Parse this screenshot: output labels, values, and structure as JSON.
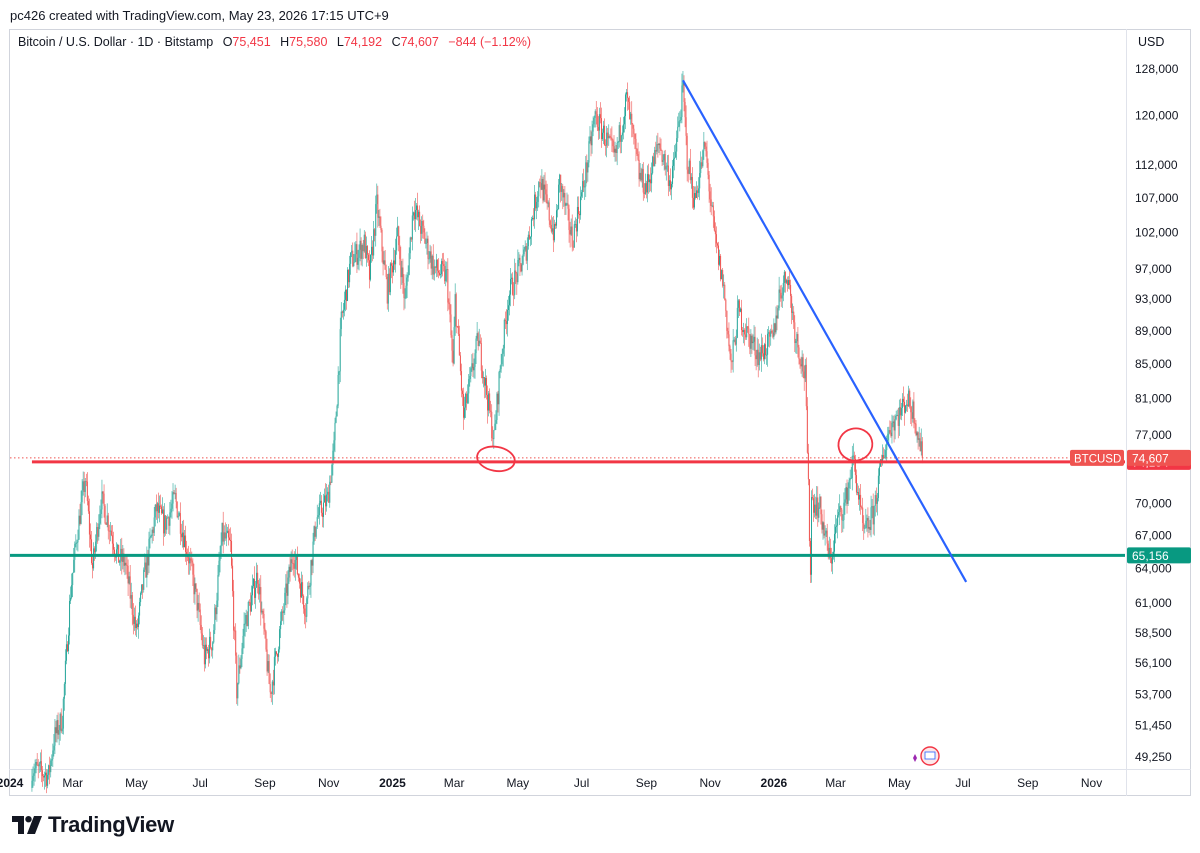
{
  "header": {
    "credit": "pc426 created with TradingView.com, May 23, 2026 17:15 UTC+9"
  },
  "legend": {
    "symbol": "Bitcoin / U.S. Dollar · 1D · Bitstamp",
    "open_label": "O",
    "open_value": "75,451",
    "high_label": "H",
    "high_value": "75,580",
    "low_label": "L",
    "low_value": "74,192",
    "close_label": "C",
    "close_value": "74,607",
    "change": "−844 (−1.12%)"
  },
  "axis": {
    "currency": "USD"
  },
  "footer": {
    "brand": "TradingView"
  },
  "colors": {
    "up": "#26a69a",
    "down": "#ef5350",
    "trendline": "#2962ff",
    "resistance": "#f23645",
    "support": "#089981",
    "annotation": "#f23645"
  },
  "chart_data": {
    "type": "candlestick",
    "scale": "log",
    "interval": "1D",
    "y_ticks": [
      128000,
      120000,
      112000,
      107000,
      102000,
      97000,
      93000,
      89000,
      85000,
      81000,
      77000,
      70000,
      67000,
      64000,
      61000,
      58500,
      56100,
      53700,
      51450,
      49250
    ],
    "y_tick_labels": [
      "128,000",
      "120,000",
      "112,000",
      "107,000",
      "102,000",
      "97,000",
      "93,000",
      "89,000",
      "85,000",
      "81,000",
      "77,000",
      "70,000",
      "67,000",
      "64,000",
      "61,000",
      "58,500",
      "56,100",
      "53,700",
      "51,450",
      "49,250"
    ],
    "x_ticks": [
      {
        "date": "2024-01-01",
        "label": "2024",
        "bold": true
      },
      {
        "date": "2024-03-01",
        "label": "Mar"
      },
      {
        "date": "2024-05-01",
        "label": "May"
      },
      {
        "date": "2024-07-01",
        "label": "Jul"
      },
      {
        "date": "2024-09-01",
        "label": "Sep"
      },
      {
        "date": "2024-11-01",
        "label": "Nov"
      },
      {
        "date": "2025-01-01",
        "label": "2025",
        "bold": true
      },
      {
        "date": "2025-03-01",
        "label": "Mar"
      },
      {
        "date": "2025-05-01",
        "label": "May"
      },
      {
        "date": "2025-07-01",
        "label": "Jul"
      },
      {
        "date": "2025-09-01",
        "label": "Sep"
      },
      {
        "date": "2025-11-01",
        "label": "Nov"
      },
      {
        "date": "2026-01-01",
        "label": "2026",
        "bold": true
      },
      {
        "date": "2026-03-01",
        "label": "Mar"
      },
      {
        "date": "2026-05-01",
        "label": "May"
      },
      {
        "date": "2026-07-01",
        "label": "Jul"
      },
      {
        "date": "2026-09-01",
        "label": "Sep"
      },
      {
        "date": "2026-11-01",
        "label": "Nov"
      }
    ],
    "x_range": [
      "2024-01-01",
      "2026-12-03"
    ],
    "price_path": [
      [
        "2024-01-22",
        48500
      ],
      [
        "2024-02-07",
        48000
      ],
      [
        "2024-02-12",
        50500
      ],
      [
        "2024-02-20",
        52000
      ],
      [
        "2024-02-28",
        62000
      ],
      [
        "2024-03-05",
        67000
      ],
      [
        "2024-03-13",
        72500
      ],
      [
        "2024-03-20",
        64000
      ],
      [
        "2024-03-28",
        70500
      ],
      [
        "2024-04-05",
        68000
      ],
      [
        "2024-04-13",
        65000
      ],
      [
        "2024-04-20",
        64500
      ],
      [
        "2024-05-01",
        58500
      ],
      [
        "2024-05-08",
        63000
      ],
      [
        "2024-05-20",
        69500
      ],
      [
        "2024-05-28",
        68000
      ],
      [
        "2024-06-07",
        70500
      ],
      [
        "2024-06-20",
        65000
      ],
      [
        "2024-06-28",
        61000
      ],
      [
        "2024-07-05",
        56500
      ],
      [
        "2024-07-13",
        58000
      ],
      [
        "2024-07-22",
        67000
      ],
      [
        "2024-07-30",
        66000
      ],
      [
        "2024-08-05",
        54000
      ],
      [
        "2024-08-12",
        59000
      ],
      [
        "2024-08-25",
        63500
      ],
      [
        "2024-09-06",
        53800
      ],
      [
        "2024-09-15",
        58500
      ],
      [
        "2024-09-28",
        65500
      ],
      [
        "2024-10-10",
        60500
      ],
      [
        "2024-10-20",
        68500
      ],
      [
        "2024-10-31",
        70500
      ],
      [
        "2024-11-06",
        75500
      ],
      [
        "2024-11-13",
        90000
      ],
      [
        "2024-11-22",
        98000
      ],
      [
        "2024-12-05",
        100500
      ],
      [
        "2024-12-10",
        96000
      ],
      [
        "2024-12-17",
        106000
      ],
      [
        "2024-12-27",
        94000
      ],
      [
        "2025-01-06",
        101500
      ],
      [
        "2025-01-13",
        92500
      ],
      [
        "2025-01-21",
        106000
      ],
      [
        "2025-02-01",
        101000
      ],
      [
        "2025-02-10",
        97000
      ],
      [
        "2025-02-22",
        96000
      ],
      [
        "2025-02-28",
        84500
      ],
      [
        "2025-03-02",
        93000
      ],
      [
        "2025-03-10",
        79000
      ],
      [
        "2025-03-24",
        88000
      ],
      [
        "2025-03-31",
        82500
      ],
      [
        "2025-04-08",
        76500
      ],
      [
        "2025-04-14",
        84500
      ],
      [
        "2025-04-22",
        93500
      ],
      [
        "2025-05-08",
        99000
      ],
      [
        "2025-05-22",
        110000
      ],
      [
        "2025-06-05",
        101500
      ],
      [
        "2025-06-10",
        109500
      ],
      [
        "2025-06-22",
        101000
      ],
      [
        "2025-07-03",
        109000
      ],
      [
        "2025-07-14",
        120000
      ],
      [
        "2025-08-02",
        113000
      ],
      [
        "2025-08-13",
        123000
      ],
      [
        "2025-08-25",
        110500
      ],
      [
        "2025-09-01",
        108500
      ],
      [
        "2025-09-13",
        115500
      ],
      [
        "2025-09-25",
        109000
      ],
      [
        "2025-10-06",
        124500
      ],
      [
        "2025-10-10",
        113000
      ],
      [
        "2025-10-17",
        106500
      ],
      [
        "2025-10-27",
        115000
      ],
      [
        "2025-11-05",
        101500
      ],
      [
        "2025-11-14",
        94500
      ],
      [
        "2025-11-21",
        84500
      ],
      [
        "2025-11-28",
        91500
      ],
      [
        "2025-12-05",
        89000
      ],
      [
        "2025-12-18",
        86000
      ],
      [
        "2025-12-31",
        88000
      ],
      [
        "2026-01-06",
        93500
      ],
      [
        "2026-01-14",
        96500
      ],
      [
        "2026-01-21",
        89000
      ],
      [
        "2026-01-31",
        83500
      ],
      [
        "2026-02-05",
        64000
      ],
      [
        "2026-02-06",
        70500
      ],
      [
        "2026-02-14",
        69500
      ],
      [
        "2026-02-24",
        64500
      ],
      [
        "2026-03-03",
        68500
      ],
      [
        "2026-03-10",
        70000
      ],
      [
        "2026-03-18",
        74500
      ],
      [
        "2026-03-28",
        67000
      ],
      [
        "2026-04-06",
        69000
      ],
      [
        "2026-04-14",
        74000
      ],
      [
        "2026-04-22",
        78000
      ],
      [
        "2026-05-02",
        79500
      ],
      [
        "2026-05-08",
        81000
      ],
      [
        "2026-05-15",
        79500
      ],
      [
        "2026-05-23",
        74607
      ]
    ],
    "last_price": {
      "value": 74607,
      "label": "74,607",
      "symbol": "BTCUSD"
    },
    "horizontal_lines": [
      {
        "role": "resistance",
        "value": 74194,
        "label": "74,194",
        "start_date": "2024-01-22"
      },
      {
        "role": "support",
        "value": 65156,
        "label": "65,156",
        "start_date": "2024-01-01"
      }
    ],
    "trendline": {
      "from": [
        "2025-10-06",
        126000
      ],
      "to": [
        "2026-07-04",
        62800
      ]
    },
    "annotations": [
      {
        "shape": "circle",
        "date": "2025-04-10",
        "price": 74500
      },
      {
        "shape": "circle",
        "date": "2026-03-20",
        "price": 76000
      }
    ],
    "grid": false
  }
}
